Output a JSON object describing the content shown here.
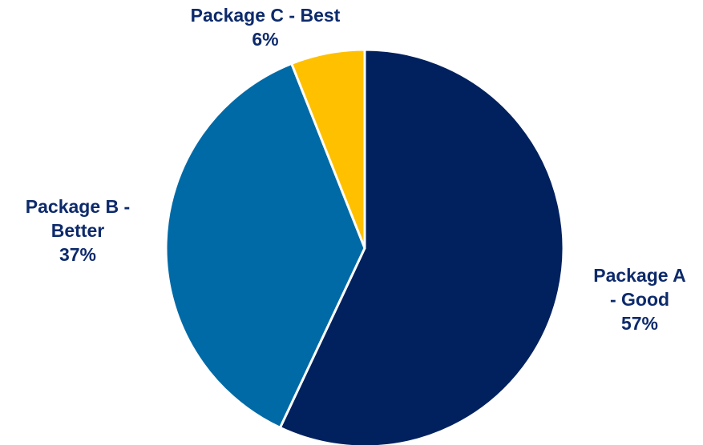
{
  "chart_data": {
    "type": "pie",
    "title": "",
    "start_angle_deg": 90,
    "direction": "clockwise",
    "slices": [
      {
        "name": "Package A - Good",
        "value": 57,
        "label_lines": [
          "Package A",
          "- Good",
          "57%"
        ],
        "color": "#00215e"
      },
      {
        "name": "Package B - Better",
        "value": 37,
        "label_lines": [
          "Package B -",
          "Better",
          "37%"
        ],
        "color": "#006aa6"
      },
      {
        "name": "Package C - Best",
        "value": 6,
        "label_lines": [
          "Package C - Best",
          "6%"
        ],
        "color": "#ffc000"
      }
    ],
    "slice_border_color": "#ffffff",
    "label_color": "#0d2a6b",
    "legend": "none"
  }
}
